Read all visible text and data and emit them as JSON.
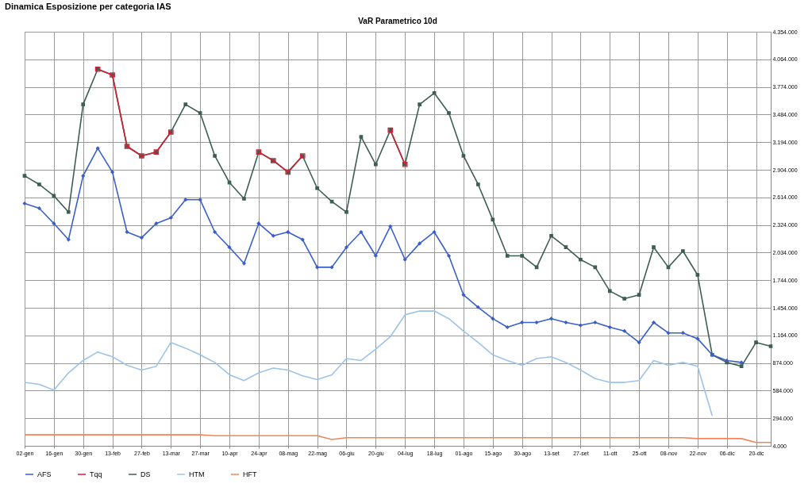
{
  "chart_data": {
    "type": "line",
    "title": "Dinamica Esposizione per categoria IAS",
    "subtitle": "VaR Parametrico 10d",
    "categories": [
      "02-gen",
      null,
      "16-gen",
      null,
      "30-gen",
      null,
      "13-feb",
      null,
      "27-feb",
      null,
      "13-mar",
      null,
      "27-mar",
      null,
      "10-apr",
      null,
      "24-apr",
      null,
      "08-mag",
      null,
      "22-mag",
      null,
      "06-giu",
      null,
      "20-giu",
      null,
      "04-lug",
      null,
      "18-lug",
      null,
      "01-ago",
      null,
      "15-ago",
      null,
      "30-ago",
      null,
      "13-set",
      null,
      "27-set",
      null,
      "11-ott",
      null,
      "25-ott",
      null,
      "08-nov",
      null,
      "22-nov",
      null,
      "06-dic",
      null,
      "20-dic",
      null
    ],
    "series": [
      {
        "name": "AFS",
        "color": "#3a5fcd",
        "marker": "diamond",
        "values": [
          2550000,
          2500000,
          2340000,
          2170000,
          2840000,
          3130000,
          2880000,
          2250000,
          2190000,
          2340000,
          2400000,
          2590000,
          2590000,
          2250000,
          2090000,
          1920000,
          2340000,
          2210000,
          2250000,
          2170000,
          1880000,
          1880000,
          2090000,
          2250000,
          2000000,
          2310000,
          1960000,
          2130000,
          2250000,
          2000000,
          1590000,
          1460000,
          1340000,
          1250000,
          1300000,
          1300000,
          1340000,
          1300000,
          1270000,
          1300000,
          1250000,
          1210000,
          1090000,
          1300000,
          1190000,
          1190000,
          1130000,
          960000,
          900000,
          880000,
          null,
          null
        ]
      },
      {
        "name": "Tqq",
        "color": "#cc2233",
        "marker": "square",
        "values": [
          null,
          null,
          null,
          null,
          null,
          3960000,
          3900000,
          3150000,
          3050000,
          3090000,
          3300000,
          null,
          null,
          null,
          null,
          null,
          3090000,
          3000000,
          2880000,
          3050000,
          null,
          null,
          null,
          null,
          null,
          3320000,
          2960000,
          null,
          null,
          null,
          null,
          null,
          null,
          null,
          null,
          null,
          null,
          null,
          null,
          null,
          null,
          null,
          null,
          null,
          null,
          null,
          null,
          null,
          null,
          null,
          null,
          null
        ]
      },
      {
        "name": "DS",
        "color": "#3e5e55",
        "marker": "square",
        "values": [
          2840000,
          2750000,
          2630000,
          2460000,
          3590000,
          3960000,
          3900000,
          3150000,
          3050000,
          3090000,
          3300000,
          3590000,
          3500000,
          3050000,
          2770000,
          2600000,
          3090000,
          3000000,
          2880000,
          3050000,
          2710000,
          2570000,
          2460000,
          3250000,
          2960000,
          3320000,
          2960000,
          3590000,
          3710000,
          3500000,
          3050000,
          2750000,
          2380000,
          2000000,
          2000000,
          1880000,
          2210000,
          2090000,
          1960000,
          1880000,
          1630000,
          1550000,
          1590000,
          2090000,
          1880000,
          2050000,
          1800000,
          960000,
          880000,
          840000,
          1090000,
          1050000
        ]
      },
      {
        "name": "HTM",
        "color": "#9cc3e8",
        "marker": "none",
        "values": [
          670000,
          650000,
          590000,
          770000,
          900000,
          990000,
          940000,
          850000,
          800000,
          840000,
          1090000,
          1030000,
          960000,
          880000,
          750000,
          690000,
          770000,
          820000,
          800000,
          740000,
          700000,
          750000,
          920000,
          900000,
          1020000,
          1150000,
          1380000,
          1420000,
          1420000,
          1340000,
          1210000,
          1090000,
          960000,
          900000,
          850000,
          920000,
          940000,
          880000,
          800000,
          710000,
          670000,
          670000,
          690000,
          900000,
          850000,
          880000,
          840000,
          320000,
          null,
          null,
          null,
          null
        ]
      },
      {
        "name": "HFT",
        "color": "#f0845a",
        "marker": "none",
        "values": [
          120000,
          120000,
          120000,
          120000,
          120000,
          120000,
          120000,
          120000,
          120000,
          120000,
          120000,
          120000,
          120000,
          110000,
          110000,
          110000,
          110000,
          110000,
          110000,
          110000,
          110000,
          70000,
          90000,
          90000,
          90000,
          90000,
          90000,
          90000,
          90000,
          90000,
          90000,
          90000,
          90000,
          90000,
          90000,
          90000,
          90000,
          90000,
          90000,
          90000,
          90000,
          90000,
          90000,
          90000,
          90000,
          90000,
          80000,
          80000,
          80000,
          80000,
          40000,
          40000
        ]
      }
    ],
    "ylim": [
      4000,
      4354000
    ],
    "yticks": [
      {
        "value": 4000,
        "label": "4.000"
      },
      {
        "value": 294000,
        "label": "294.000"
      },
      {
        "value": 584000,
        "label": "584.000"
      },
      {
        "value": 874000,
        "label": "874.000"
      },
      {
        "value": 1164000,
        "label": "1.164.000"
      },
      {
        "value": 1454000,
        "label": "1.454.000"
      },
      {
        "value": 1744000,
        "label": "1.744.000"
      },
      {
        "value": 2034000,
        "label": "2.034.000"
      },
      {
        "value": 2324000,
        "label": "2.324.000"
      },
      {
        "value": 2614000,
        "label": "2.614.000"
      },
      {
        "value": 2904000,
        "label": "2.904.000"
      },
      {
        "value": 3194000,
        "label": "3.194.000"
      },
      {
        "value": 3484000,
        "label": "3.484.000"
      },
      {
        "value": 3774000,
        "label": "3.774.000"
      },
      {
        "value": 4064000,
        "label": "4.064.000"
      },
      {
        "value": 4354000,
        "label": "4.354.000"
      }
    ],
    "grid": true,
    "legend": "bottom"
  }
}
